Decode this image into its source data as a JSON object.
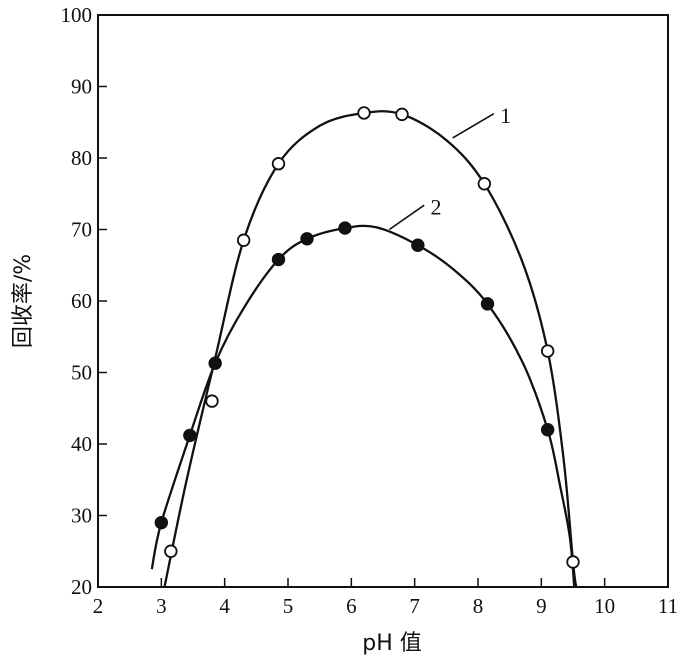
{
  "chart_data": {
    "type": "scatter",
    "title": "",
    "xlabel": "pH 值",
    "ylabel": "回收率/%",
    "xlim": [
      2,
      11
    ],
    "ylim": [
      20,
      100
    ],
    "xticks": [
      2,
      3,
      4,
      5,
      6,
      7,
      8,
      9,
      10,
      11
    ],
    "yticks": [
      20,
      30,
      40,
      50,
      60,
      70,
      80,
      90,
      100
    ],
    "grid": false,
    "legend": "none",
    "series": [
      {
        "name": "1",
        "marker": "open-circle",
        "color": "#111111",
        "points": [
          {
            "x": 3.15,
            "y": 25.0
          },
          {
            "x": 3.8,
            "y": 46.0
          },
          {
            "x": 4.3,
            "y": 68.5
          },
          {
            "x": 4.85,
            "y": 79.2
          },
          {
            "x": 6.2,
            "y": 86.3
          },
          {
            "x": 6.8,
            "y": 86.1
          },
          {
            "x": 8.1,
            "y": 76.4
          },
          {
            "x": 9.1,
            "y": 53.0
          },
          {
            "x": 9.5,
            "y": 23.5
          }
        ],
        "curve": [
          {
            "x": 3.05,
            "y": 20
          },
          {
            "x": 3.4,
            "y": 35
          },
          {
            "x": 3.85,
            "y": 52
          },
          {
            "x": 4.3,
            "y": 68.5
          },
          {
            "x": 4.85,
            "y": 79.2
          },
          {
            "x": 5.5,
            "y": 84.5
          },
          {
            "x": 6.2,
            "y": 86.3
          },
          {
            "x": 6.8,
            "y": 86.1
          },
          {
            "x": 7.5,
            "y": 82.5
          },
          {
            "x": 8.1,
            "y": 76.4
          },
          {
            "x": 8.7,
            "y": 65.5
          },
          {
            "x": 9.1,
            "y": 53.0
          },
          {
            "x": 9.35,
            "y": 38
          },
          {
            "x": 9.5,
            "y": 23.5
          },
          {
            "x": 9.55,
            "y": 20
          }
        ]
      },
      {
        "name": "2",
        "marker": "filled-circle",
        "color": "#111111",
        "points": [
          {
            "x": 3.0,
            "y": 29.0
          },
          {
            "x": 3.45,
            "y": 41.2
          },
          {
            "x": 3.85,
            "y": 51.3
          },
          {
            "x": 4.85,
            "y": 65.8
          },
          {
            "x": 5.3,
            "y": 68.7
          },
          {
            "x": 5.9,
            "y": 70.2
          },
          {
            "x": 7.05,
            "y": 67.8
          },
          {
            "x": 8.15,
            "y": 59.6
          },
          {
            "x": 9.1,
            "y": 42.0
          }
        ],
        "curve": [
          {
            "x": 2.85,
            "y": 22.5
          },
          {
            "x": 3.0,
            "y": 29.0
          },
          {
            "x": 3.45,
            "y": 41.2
          },
          {
            "x": 3.85,
            "y": 51.3
          },
          {
            "x": 4.3,
            "y": 59.0
          },
          {
            "x": 4.85,
            "y": 65.8
          },
          {
            "x": 5.3,
            "y": 68.7
          },
          {
            "x": 5.9,
            "y": 70.2
          },
          {
            "x": 6.4,
            "y": 70.3
          },
          {
            "x": 7.05,
            "y": 67.8
          },
          {
            "x": 7.6,
            "y": 64.5
          },
          {
            "x": 8.15,
            "y": 59.6
          },
          {
            "x": 8.7,
            "y": 51.5
          },
          {
            "x": 9.1,
            "y": 42.0
          },
          {
            "x": 9.3,
            "y": 34
          },
          {
            "x": 9.45,
            "y": 27
          },
          {
            "x": 9.52,
            "y": 20
          }
        ]
      }
    ],
    "annotations": [
      {
        "text": "1",
        "series": "1",
        "leader_from": {
          "x": 7.6,
          "y": 82.8
        },
        "leader_to": {
          "x": 8.25,
          "y": 86.2
        },
        "text_at": {
          "x": 8.35,
          "y": 86.0
        }
      },
      {
        "text": "2",
        "series": "2",
        "leader_from": {
          "x": 6.6,
          "y": 70.0
        },
        "leader_to": {
          "x": 7.15,
          "y": 73.4
        },
        "text_at": {
          "x": 7.25,
          "y": 73.2
        }
      }
    ]
  }
}
